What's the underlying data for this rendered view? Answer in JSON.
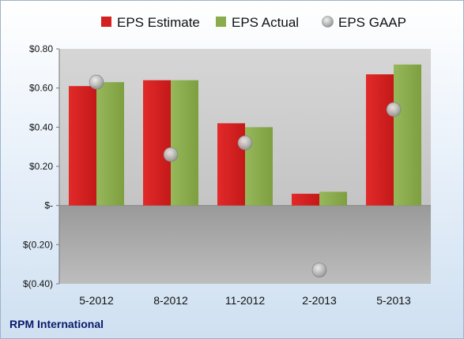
{
  "chart_data": {
    "type": "bar",
    "categories": [
      "5-2012",
      "8-2012",
      "11-2012",
      "2-2013",
      "5-2013"
    ],
    "series": [
      {
        "name": "EPS Estimate",
        "type": "bar",
        "color": "#d42020",
        "values": [
          0.61,
          0.64,
          0.42,
          0.06,
          0.67
        ]
      },
      {
        "name": "EPS Actual",
        "type": "bar",
        "color": "#8aac4c",
        "values": [
          0.63,
          0.64,
          0.4,
          0.07,
          0.72
        ]
      },
      {
        "name": "EPS GAAP",
        "type": "scatter",
        "color": "#c8c8c8",
        "values": [
          0.63,
          0.26,
          0.32,
          -0.33,
          0.49
        ]
      }
    ],
    "ylim": [
      -0.4,
      0.8
    ],
    "yticks": [
      0.8,
      0.6,
      0.4,
      0.2,
      0.0,
      -0.2,
      -0.4
    ],
    "ytick_labels": [
      "$0.80",
      "$0.60",
      "$0.40",
      "$0.20",
      "$-",
      "$(0.20)",
      "$(0.40)"
    ],
    "legend_position": "top",
    "grid": false
  },
  "footer": {
    "company": "RPM International"
  }
}
